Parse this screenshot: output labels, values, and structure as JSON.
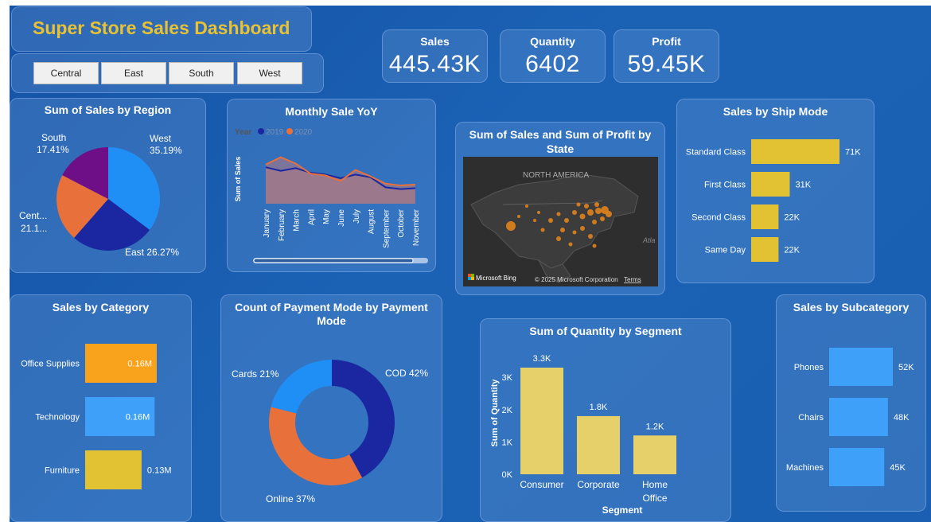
{
  "dashboard": {
    "title": "Super Store Sales Dashboard"
  },
  "slicer": {
    "items": [
      "Central",
      "East",
      "South",
      "West"
    ]
  },
  "kpis": [
    {
      "label": "Sales",
      "value": "445.43K"
    },
    {
      "label": "Quantity",
      "value": "6402"
    },
    {
      "label": "Profit",
      "value": "59.45K"
    }
  ],
  "colors": {
    "accent_title": "#e8c233",
    "bar_yellow": "#e2c233",
    "bar_blue": "#3ea0f8",
    "bar_orange": "#f9a21b"
  },
  "map": {
    "title": "Sum of Sales and Sum of Profit by State",
    "label": "NORTH AMERICA",
    "ocean_label": "Atla",
    "logo": "Microsoft Bing",
    "copyright": "© 2025 Microsoft Corporation",
    "terms": "Terms"
  },
  "chart_data": [
    {
      "id": "region",
      "type": "pie",
      "title": "Sum of Sales by Region",
      "slices": [
        {
          "label": "West",
          "pct_label": "35.19%",
          "value": 35.19,
          "color": "#1f8ff5"
        },
        {
          "label": "East",
          "pct_label": "26.27%",
          "value": 26.27,
          "color": "#1a27a0"
        },
        {
          "label": "Cent...",
          "pct_label": "21.1...",
          "value": 21.13,
          "color": "#e8703a"
        },
        {
          "label": "South",
          "pct_label": "17.41%",
          "value": 17.41,
          "color": "#6e0f87"
        }
      ]
    },
    {
      "id": "monthly",
      "type": "area",
      "title": "Monthly Sale YoY",
      "legend_title": "Year",
      "ylabel": "Sum of Sales",
      "categories": [
        "January",
        "February",
        "March",
        "April",
        "May",
        "June",
        "July",
        "August",
        "September",
        "October",
        "November"
      ],
      "series": [
        {
          "name": "2019",
          "color": "#1a27a0",
          "values": [
            40,
            36,
            39,
            34,
            32,
            28,
            32,
            29,
            18,
            16,
            17
          ]
        },
        {
          "name": "2020",
          "color": "#e8703a",
          "values": [
            43,
            51,
            44,
            33,
            31,
            25,
            37,
            30,
            22,
            20,
            21
          ]
        }
      ]
    },
    {
      "id": "shipmode",
      "type": "bar",
      "orientation": "horizontal",
      "title": "Sales by Ship Mode",
      "categories": [
        "Standard Class",
        "First Class",
        "Second Class",
        "Same Day"
      ],
      "values": [
        71,
        31,
        22,
        22
      ],
      "labels": [
        "71K",
        "31K",
        "22K",
        "22K"
      ]
    },
    {
      "id": "category",
      "type": "bar",
      "orientation": "horizontal",
      "title": "Sales by Category",
      "categories": [
        "Office Supplies",
        "Technology",
        "Furniture"
      ],
      "values": [
        0.165,
        0.16,
        0.13
      ],
      "labels": [
        "0.16M",
        "0.16M",
        "0.13M"
      ],
      "colors": [
        "#f9a21b",
        "#3ea0f8",
        "#e2c233"
      ]
    },
    {
      "id": "payment",
      "type": "pie",
      "donut": true,
      "title": "Count of Payment Mode by Payment Mode",
      "slices": [
        {
          "label": "COD 42%",
          "value": 42,
          "color": "#1a27a0"
        },
        {
          "label": "Online 37%",
          "value": 37,
          "color": "#e8703a"
        },
        {
          "label": "Cards 21%",
          "value": 21,
          "color": "#1f8ff5"
        }
      ]
    },
    {
      "id": "segment",
      "type": "bar",
      "orientation": "vertical",
      "title": "Sum of Quantity by Segment",
      "xlabel": "Segment",
      "ylabel": "Sum of Quantity",
      "categories": [
        "Consumer",
        "Corporate",
        "Home Office"
      ],
      "values": [
        3.3,
        1.8,
        1.2
      ],
      "labels": [
        "3.3K",
        "1.8K",
        "1.2K"
      ],
      "yticks": [
        "0K",
        "1K",
        "2K",
        "3K"
      ],
      "ylim": [
        0,
        3.3
      ]
    },
    {
      "id": "subcategory",
      "type": "bar",
      "orientation": "horizontal",
      "title": "Sales by Subcategory",
      "categories": [
        "Phones",
        "Chairs",
        "Machines"
      ],
      "values": [
        52,
        48,
        45
      ],
      "labels": [
        "52K",
        "48K",
        "45K"
      ]
    }
  ]
}
